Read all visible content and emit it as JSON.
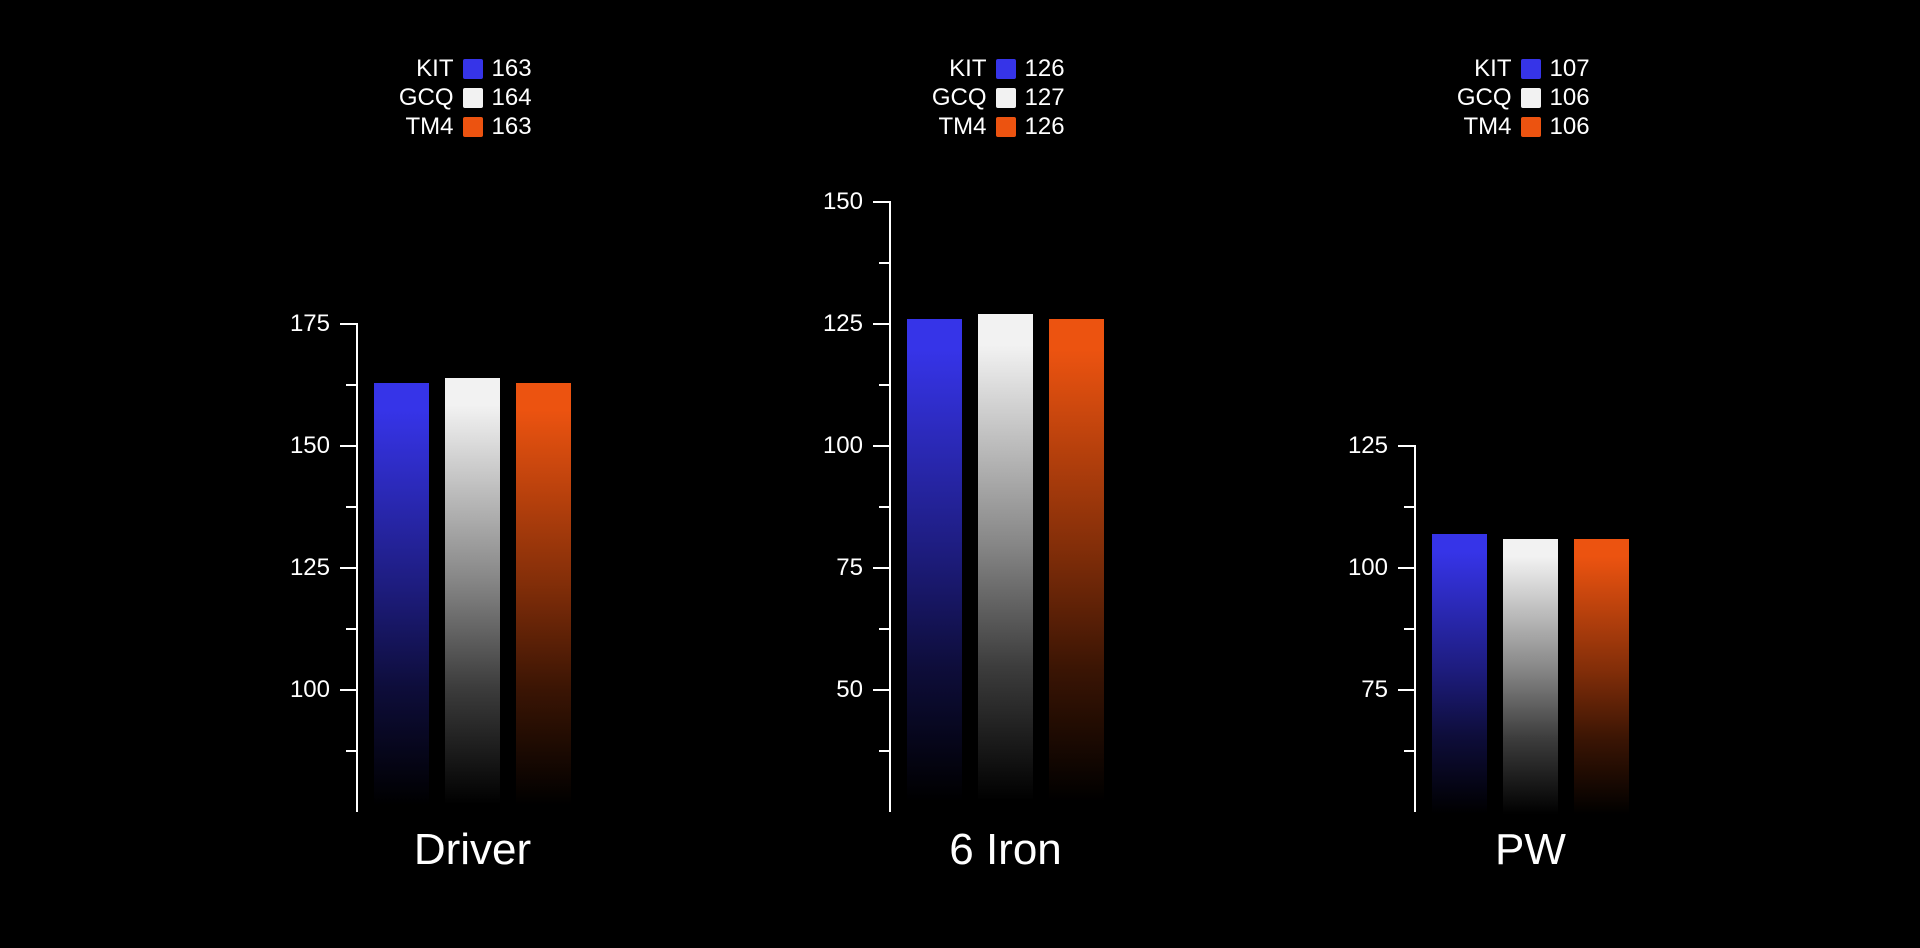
{
  "page": {
    "background_color": "#000000",
    "text_color": "#ffffff"
  },
  "chart_data": [
    {
      "type": "bar",
      "title": "Driver",
      "legend_position": "top",
      "grid": false,
      "categories": [
        "KIT",
        "GCQ",
        "TM4"
      ],
      "series": [
        {
          "name": "KIT",
          "value": 163,
          "color": "#3634e8"
        },
        {
          "name": "GCQ",
          "value": 164,
          "color": "#f2f2f2"
        },
        {
          "name": "TM4",
          "value": 163,
          "color": "#ec5310"
        }
      ],
      "ylim": [
        75,
        175
      ],
      "yticks_major": [
        175,
        150,
        125,
        100
      ],
      "yticks_minor": [
        162.5,
        137.5,
        112.5,
        87.5
      ]
    },
    {
      "type": "bar",
      "title": "6 Iron",
      "legend_position": "top",
      "grid": false,
      "categories": [
        "KIT",
        "GCQ",
        "TM4"
      ],
      "series": [
        {
          "name": "KIT",
          "value": 126,
          "color": "#3634e8"
        },
        {
          "name": "GCQ",
          "value": 127,
          "color": "#f2f2f2"
        },
        {
          "name": "TM4",
          "value": 126,
          "color": "#ec5310"
        }
      ],
      "ylim": [
        25,
        150
      ],
      "yticks_major": [
        150,
        125,
        100,
        75,
        50
      ],
      "yticks_minor": [
        137.5,
        112.5,
        87.5,
        62.5,
        37.5
      ]
    },
    {
      "type": "bar",
      "title": "PW",
      "legend_position": "top",
      "grid": false,
      "categories": [
        "KIT",
        "GCQ",
        "TM4"
      ],
      "series": [
        {
          "name": "KIT",
          "value": 107,
          "color": "#3634e8"
        },
        {
          "name": "GCQ",
          "value": 106,
          "color": "#f2f2f2"
        },
        {
          "name": "TM4",
          "value": 106,
          "color": "#ec5310"
        }
      ],
      "ylim": [
        50,
        125
      ],
      "yticks_major": [
        125,
        100,
        75
      ],
      "yticks_minor": [
        112.5,
        87.5,
        62.5
      ]
    }
  ]
}
